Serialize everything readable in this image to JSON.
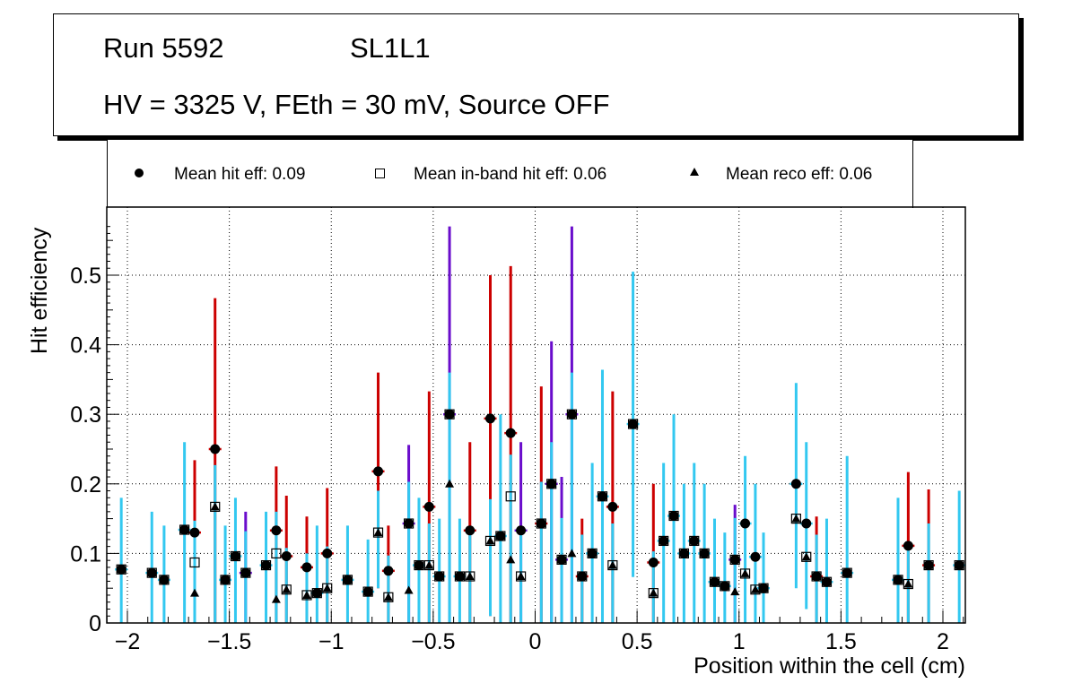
{
  "title": {
    "line1_left": "Run 5592",
    "line1_right": "SL1L1",
    "line2": "HV = 3325 V, FEth = 30 mV, Source OFF"
  },
  "legend": [
    {
      "marker": "filled-circle",
      "label": "Mean hit  eff: 0.09"
    },
    {
      "marker": "open-square",
      "label": "Mean in-band hit eff: 0.06"
    },
    {
      "marker": "filled-triangle",
      "label": "Mean reco eff: 0.06"
    }
  ],
  "colors": {
    "error_cyan": "#33c8f0",
    "error_red": "#cc0000",
    "error_purple": "#6a0dcc",
    "grid": "#000000"
  },
  "chart_data": {
    "type": "scatter",
    "title": "Run 5592 SL1L1 — HV = 3325 V, FEth = 30 mV, Source OFF",
    "xlabel": "Position within the cell (cm)",
    "ylabel": "Hit efficiency",
    "xlim": [
      -2.1,
      2.11
    ],
    "ylim": [
      0,
      0.6
    ],
    "grid": true,
    "legend_position": "top",
    "x_ticks": [
      "-2",
      "-1.5",
      "-1",
      "-0.5",
      "0",
      "0.5",
      "1",
      "1.5",
      "2"
    ],
    "x_tick_values": [
      -2,
      -1.5,
      -1,
      -0.5,
      0,
      0.5,
      1,
      1.5,
      2
    ],
    "y_ticks": [
      "0",
      "0.1",
      "0.2",
      "0.3",
      "0.4",
      "0.5"
    ],
    "y_tick_values": [
      0,
      0.1,
      0.2,
      0.3,
      0.4,
      0.5
    ],
    "series_names": [
      "Mean hit eff",
      "Mean in-band hit eff",
      "Mean reco eff"
    ],
    "points": [
      {
        "x": -2.03,
        "hit": 0.077,
        "inband": 0.077,
        "reco": 0.077,
        "err": [
          0,
          0.18
        ],
        "ec": "cyan"
      },
      {
        "x": -1.88,
        "hit": 0.072,
        "inband": 0.072,
        "reco": 0.072,
        "err": [
          0,
          0.16
        ],
        "ec": "cyan"
      },
      {
        "x": -1.82,
        "hit": 0.062,
        "inband": 0.062,
        "reco": 0.062,
        "err": [
          0,
          0.14
        ],
        "ec": "cyan"
      },
      {
        "x": -1.72,
        "hit": 0.134,
        "inband": 0.134,
        "reco": 0.134,
        "err": [
          0.0,
          0.26
        ],
        "ec": "cyan"
      },
      {
        "x": -1.67,
        "hit": 0.13,
        "inband": 0.087,
        "reco": 0.043,
        "err": [
          0,
          0.234
        ],
        "ec": "red"
      },
      {
        "x": -1.57,
        "hit": 0.25,
        "inband": 0.167,
        "reco": 0.167,
        "err": [
          0,
          0.467
        ],
        "ec": "red"
      },
      {
        "x": -1.52,
        "hit": 0.062,
        "inband": 0.062,
        "reco": 0.062,
        "err": [
          0,
          0.14
        ],
        "ec": "cyan"
      },
      {
        "x": -1.47,
        "hit": 0.096,
        "inband": 0.096,
        "reco": 0.096,
        "err": [
          0,
          0.18
        ],
        "ec": "cyan"
      },
      {
        "x": -1.42,
        "hit": 0.072,
        "inband": 0.072,
        "reco": 0.072,
        "err": [
          0,
          0.16
        ],
        "ec": "purple"
      },
      {
        "x": -1.32,
        "hit": 0.083,
        "inband": 0.083,
        "reco": 0.083,
        "err": [
          0,
          0.16
        ],
        "ec": "cyan"
      },
      {
        "x": -1.27,
        "hit": 0.133,
        "inband": 0.1,
        "reco": 0.034,
        "err": [
          0,
          0.225
        ],
        "ec": "red"
      },
      {
        "x": -1.22,
        "hit": 0.096,
        "inband": 0.048,
        "reco": 0.048,
        "err": [
          0,
          0.183
        ],
        "ec": "red"
      },
      {
        "x": -1.12,
        "hit": 0.08,
        "inband": 0.04,
        "reco": 0.04,
        "err": [
          0,
          0.153
        ],
        "ec": "red"
      },
      {
        "x": -1.07,
        "hit": 0.043,
        "inband": 0.043,
        "reco": 0.043,
        "err": [
          0,
          0.14
        ],
        "ec": "cyan"
      },
      {
        "x": -1.02,
        "hit": 0.1,
        "inband": 0.05,
        "reco": 0.05,
        "err": [
          0,
          0.194
        ],
        "ec": "red"
      },
      {
        "x": -0.92,
        "hit": 0.062,
        "inband": 0.062,
        "reco": 0.062,
        "err": [
          0,
          0.14
        ],
        "ec": "cyan"
      },
      {
        "x": -0.82,
        "hit": 0.045,
        "inband": 0.045,
        "reco": 0.045,
        "err": [
          0,
          0.12
        ],
        "ec": "cyan"
      },
      {
        "x": -0.77,
        "hit": 0.218,
        "inband": 0.13,
        "reco": 0.13,
        "err": [
          0.05,
          0.36
        ],
        "ec": "red"
      },
      {
        "x": -0.72,
        "hit": 0.075,
        "inband": 0.037,
        "reco": 0.037,
        "err": [
          0,
          0.14
        ],
        "ec": "red"
      },
      {
        "x": -0.62,
        "hit": 0.143,
        "inband": 0.143,
        "reco": 0.047,
        "err": [
          0,
          0.256
        ],
        "ec": "purple"
      },
      {
        "x": -0.57,
        "hit": 0.083,
        "inband": 0.083,
        "reco": 0.083,
        "err": [
          0,
          0.18
        ],
        "ec": "cyan"
      },
      {
        "x": -0.52,
        "hit": 0.167,
        "inband": 0.083,
        "reco": 0.083,
        "err": [
          0,
          0.333
        ],
        "ec": "red"
      },
      {
        "x": -0.47,
        "hit": 0.067,
        "inband": 0.067,
        "reco": 0.067,
        "err": [
          0,
          0.15
        ],
        "ec": "cyan"
      },
      {
        "x": -0.42,
        "hit": 0.3,
        "inband": 0.3,
        "reco": 0.2,
        "err": [
          0,
          0.57
        ],
        "ec": "purple"
      },
      {
        "x": -0.37,
        "hit": 0.067,
        "inband": 0.067,
        "reco": 0.067,
        "err": [
          0,
          0.15
        ],
        "ec": "cyan"
      },
      {
        "x": -0.32,
        "hit": 0.133,
        "inband": 0.067,
        "reco": 0.067,
        "err": [
          0,
          0.26
        ],
        "ec": "red"
      },
      {
        "x": -0.22,
        "hit": 0.294,
        "inband": 0.118,
        "reco": 0.118,
        "err": [
          0.01,
          0.5
        ],
        "ec": "red"
      },
      {
        "x": -0.17,
        "hit": 0.125,
        "inband": 0.125,
        "reco": 0.125,
        "err": [
          0,
          0.3
        ],
        "ec": "cyan"
      },
      {
        "x": -0.12,
        "hit": 0.273,
        "inband": 0.182,
        "reco": 0.091,
        "err": [
          0,
          0.513
        ],
        "ec": "red"
      },
      {
        "x": -0.07,
        "hit": 0.133,
        "inband": 0.067,
        "reco": 0.067,
        "err": [
          0,
          0.26
        ],
        "ec": "purple"
      },
      {
        "x": 0.03,
        "hit": 0.143,
        "inband": 0.143,
        "reco": 0.143,
        "err": [
          0,
          0.34
        ],
        "ec": "red"
      },
      {
        "x": 0.08,
        "hit": 0.2,
        "inband": 0.2,
        "reco": 0.2,
        "err": [
          0,
          0.405
        ],
        "ec": "purple"
      },
      {
        "x": 0.13,
        "hit": 0.091,
        "inband": 0.091,
        "reco": 0.091,
        "err": [
          0,
          0.21
        ],
        "ec": "purple"
      },
      {
        "x": 0.18,
        "hit": 0.3,
        "inband": 0.3,
        "reco": 0.1,
        "err": [
          0,
          0.57
        ],
        "ec": "purple"
      },
      {
        "x": 0.23,
        "hit": 0.067,
        "inband": 0.067,
        "reco": 0.067,
        "err": [
          0,
          0.15
        ],
        "ec": "red"
      },
      {
        "x": 0.28,
        "hit": 0.1,
        "inband": 0.1,
        "reco": 0.1,
        "err": [
          0,
          0.23
        ],
        "ec": "cyan"
      },
      {
        "x": 0.33,
        "hit": 0.182,
        "inband": 0.182,
        "reco": 0.182,
        "err": [
          0,
          0.364
        ],
        "ec": "cyan"
      },
      {
        "x": 0.38,
        "hit": 0.167,
        "inband": 0.083,
        "reco": 0.083,
        "err": [
          0,
          0.333
        ],
        "ec": "red"
      },
      {
        "x": 0.48,
        "hit": 0.286,
        "inband": 0.286,
        "reco": 0.286,
        "err": [
          0.066,
          0.505
        ],
        "ec": "cyan"
      },
      {
        "x": 0.58,
        "hit": 0.087,
        "inband": 0.043,
        "reco": 0.043,
        "err": [
          0,
          0.2
        ],
        "ec": "red"
      },
      {
        "x": 0.63,
        "hit": 0.118,
        "inband": 0.118,
        "reco": 0.118,
        "err": [
          0,
          0.23
        ],
        "ec": "cyan"
      },
      {
        "x": 0.68,
        "hit": 0.154,
        "inband": 0.154,
        "reco": 0.154,
        "err": [
          0,
          0.3
        ],
        "ec": "cyan"
      },
      {
        "x": 0.73,
        "hit": 0.1,
        "inband": 0.1,
        "reco": 0.1,
        "err": [
          0,
          0.2
        ],
        "ec": "cyan"
      },
      {
        "x": 0.78,
        "hit": 0.118,
        "inband": 0.118,
        "reco": 0.118,
        "err": [
          0,
          0.23
        ],
        "ec": "cyan"
      },
      {
        "x": 0.83,
        "hit": 0.1,
        "inband": 0.1,
        "reco": 0.1,
        "err": [
          0,
          0.2
        ],
        "ec": "cyan"
      },
      {
        "x": 0.88,
        "hit": 0.059,
        "inband": 0.059,
        "reco": 0.059,
        "err": [
          0,
          0.15
        ],
        "ec": "cyan"
      },
      {
        "x": 0.93,
        "hit": 0.053,
        "inband": 0.053,
        "reco": 0.053,
        "err": [
          0,
          0.13
        ],
        "ec": "cyan"
      },
      {
        "x": 0.98,
        "hit": 0.091,
        "inband": 0.091,
        "reco": 0.045,
        "err": [
          0,
          0.17
        ],
        "ec": "purple"
      },
      {
        "x": 1.03,
        "hit": 0.143,
        "inband": 0.071,
        "reco": 0.071,
        "err": [
          0,
          0.24
        ],
        "ec": "cyan"
      },
      {
        "x": 1.08,
        "hit": 0.095,
        "inband": 0.048,
        "reco": 0.048,
        "err": [
          0,
          0.2
        ],
        "ec": "cyan"
      },
      {
        "x": 1.12,
        "hit": 0.05,
        "inband": 0.05,
        "reco": 0.05,
        "err": [
          0,
          0.13
        ],
        "ec": "cyan"
      },
      {
        "x": 1.28,
        "hit": 0.2,
        "inband": 0.15,
        "reco": 0.15,
        "err": [
          0.05,
          0.345
        ],
        "ec": "cyan"
      },
      {
        "x": 1.33,
        "hit": 0.143,
        "inband": 0.095,
        "reco": 0.095,
        "err": [
          0.02,
          0.26
        ],
        "ec": "cyan"
      },
      {
        "x": 1.38,
        "hit": 0.067,
        "inband": 0.067,
        "reco": 0.067,
        "err": [
          0,
          0.153
        ],
        "ec": "red"
      },
      {
        "x": 1.43,
        "hit": 0.059,
        "inband": 0.059,
        "reco": 0.059,
        "err": [
          0,
          0.15
        ],
        "ec": "cyan"
      },
      {
        "x": 1.53,
        "hit": 0.072,
        "inband": 0.072,
        "reco": 0.072,
        "err": [
          0,
          0.24
        ],
        "ec": "cyan"
      },
      {
        "x": 1.78,
        "hit": 0.062,
        "inband": 0.062,
        "reco": 0.062,
        "err": [
          0,
          0.18
        ],
        "ec": "cyan"
      },
      {
        "x": 1.83,
        "hit": 0.111,
        "inband": 0.056,
        "reco": 0.056,
        "err": [
          0,
          0.217
        ],
        "ec": "red"
      },
      {
        "x": 1.93,
        "hit": 0.083,
        "inband": 0.083,
        "reco": 0.083,
        "err": [
          0,
          0.192
        ],
        "ec": "red"
      },
      {
        "x": 2.08,
        "hit": 0.083,
        "inband": 0.083,
        "reco": 0.083,
        "err": [
          0,
          0.19
        ],
        "ec": "cyan"
      }
    ]
  }
}
